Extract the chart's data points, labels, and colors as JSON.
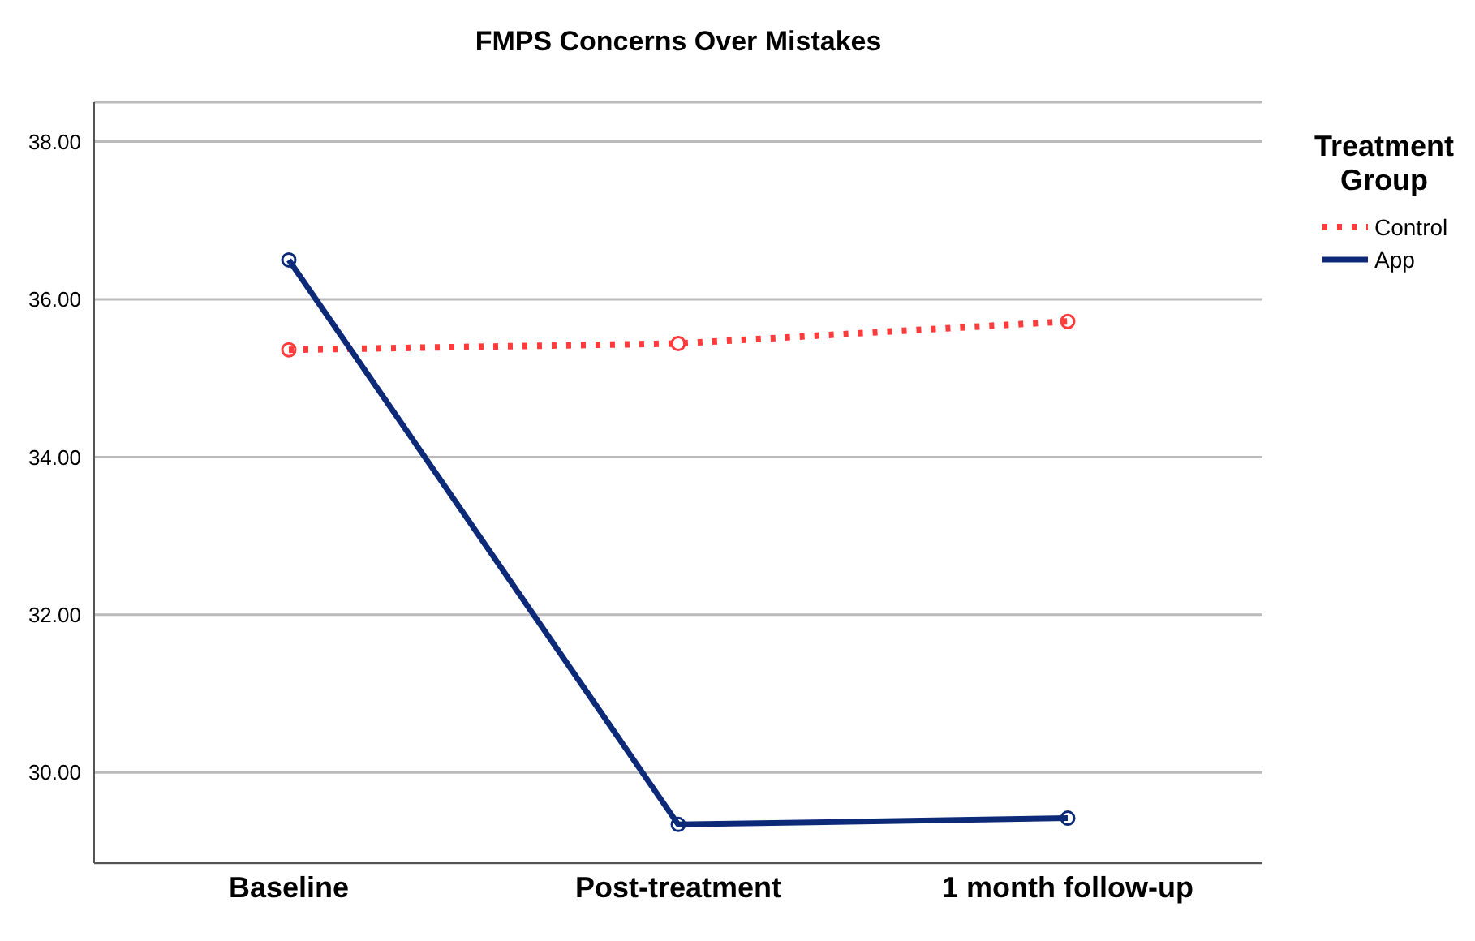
{
  "chart_data": {
    "type": "line",
    "title": "FMPS Concerns Over Mistakes",
    "legend_title": "Treatment Group",
    "categories": [
      "Baseline",
      "Post-treatment",
      "1 month follow-up"
    ],
    "series": [
      {
        "name": "Control",
        "color": "#ff3b3b",
        "values": [
          35.36,
          35.44,
          35.72
        ],
        "line_style": "dotted"
      },
      {
        "name": "App",
        "color": "#0c2a78",
        "values": [
          36.5,
          29.34,
          29.42
        ],
        "line_style": "solid"
      }
    ],
    "ylim": [
      28.85,
      38.5
    ],
    "yticks": [
      {
        "value": 30,
        "label": "30.00"
      },
      {
        "value": 32,
        "label": "32.00"
      },
      {
        "value": 34,
        "label": "34.00"
      },
      {
        "value": 36,
        "label": "36.00"
      },
      {
        "value": 38,
        "label": "38.00"
      }
    ],
    "grid": "y",
    "legend": "right",
    "marker": "circle"
  }
}
